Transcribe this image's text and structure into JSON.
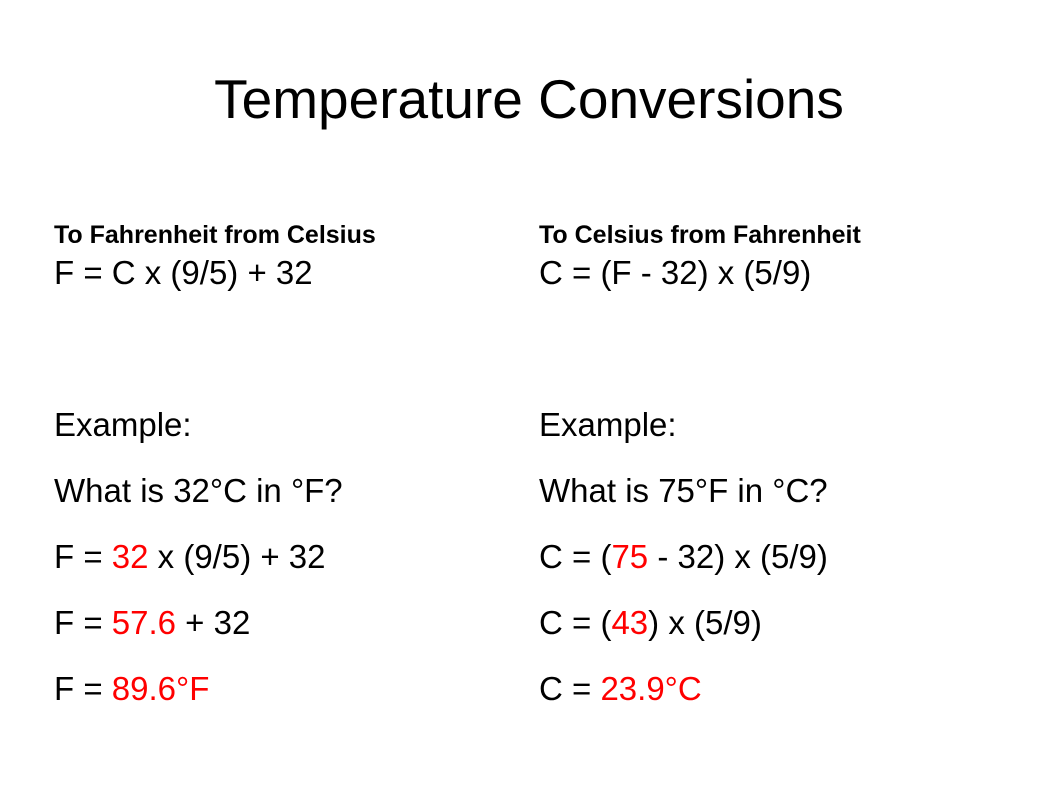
{
  "title": "Temperature Conversions",
  "colors": {
    "text": "#000000",
    "highlight": "#ff0000",
    "background": "#ffffff"
  },
  "left": {
    "heading": "To Fahrenheit from Celsius",
    "formula": "F = C x (9/5) + 32",
    "example_label": "Example:",
    "question": "What is 32°C in °F?",
    "step1": {
      "prefix": "F = ",
      "value": "32",
      "suffix": " x (9/5) + 32"
    },
    "step2": {
      "prefix": "F = ",
      "value": "57.6",
      "suffix": " + 32"
    },
    "step3": {
      "prefix": "F = ",
      "value": "89.6°F",
      "suffix": ""
    }
  },
  "right": {
    "heading": "To Celsius from Fahrenheit",
    "formula": "C = (F - 32) x (5/9)",
    "example_label": "Example:",
    "question": "What is 75°F in °C?",
    "step1": {
      "prefix": "C = (",
      "value": "75",
      "suffix": " - 32) x (5/9)"
    },
    "step2": {
      "prefix": "C = (",
      "value": "43",
      "suffix": ") x (5/9)"
    },
    "step3": {
      "prefix": "C = ",
      "value": "23.9°C",
      "suffix": ""
    }
  }
}
